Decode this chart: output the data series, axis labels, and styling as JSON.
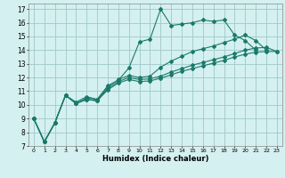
{
  "xlabel": "Humidex (Indice chaleur)",
  "background_color": "#d4f0f0",
  "grid_color": "#a0c8c8",
  "line_color": "#1a7a6a",
  "xlim": [
    -0.5,
    23.5
  ],
  "ylim": [
    7,
    17.4
  ],
  "xticks": [
    0,
    1,
    2,
    3,
    4,
    5,
    6,
    7,
    8,
    9,
    10,
    11,
    12,
    13,
    14,
    15,
    16,
    17,
    18,
    19,
    20,
    21,
    22,
    23
  ],
  "yticks": [
    7,
    8,
    9,
    10,
    11,
    12,
    13,
    14,
    15,
    16,
    17
  ],
  "lines": [
    {
      "x": [
        0,
        1,
        2,
        3,
        4,
        5,
        6,
        7,
        8,
        9,
        10,
        11,
        12,
        13,
        14,
        15,
        16,
        17,
        18,
        19,
        20,
        21
      ],
      "y": [
        9,
        7.3,
        8.7,
        10.7,
        10.2,
        10.6,
        10.4,
        11.4,
        11.8,
        12.7,
        14.6,
        14.8,
        17.0,
        15.8,
        15.9,
        16.0,
        16.2,
        16.1,
        16.2,
        15.1,
        14.7,
        14.0
      ],
      "marker": "D",
      "markersize": 2.0
    },
    {
      "x": [
        0,
        1,
        2,
        3,
        4,
        5,
        6,
        7,
        8,
        9,
        10,
        11,
        12,
        13,
        14,
        15,
        16,
        17,
        18,
        19,
        20,
        21,
        22
      ],
      "y": [
        9,
        7.3,
        8.7,
        10.7,
        10.1,
        10.5,
        10.4,
        11.3,
        11.85,
        12.15,
        12.0,
        12.1,
        12.75,
        13.2,
        13.55,
        13.9,
        14.1,
        14.3,
        14.55,
        14.8,
        15.1,
        14.7,
        14.0
      ],
      "marker": "D",
      "markersize": 2.0
    },
    {
      "x": [
        0,
        1,
        2,
        3,
        4,
        5,
        6,
        7,
        8,
        9,
        10,
        11,
        12,
        13,
        14,
        15,
        16,
        17,
        18,
        19,
        20,
        21,
        22,
        23
      ],
      "y": [
        9,
        7.3,
        8.7,
        10.7,
        10.1,
        10.4,
        10.3,
        11.2,
        11.7,
        12.0,
        11.85,
        11.9,
        12.1,
        12.4,
        12.65,
        12.9,
        13.1,
        13.3,
        13.5,
        13.75,
        14.0,
        14.15,
        14.2,
        13.9
      ],
      "marker": "D",
      "markersize": 2.0
    },
    {
      "x": [
        0,
        1,
        2,
        3,
        4,
        5,
        6,
        7,
        8,
        9,
        10,
        11,
        12,
        13,
        14,
        15,
        16,
        17,
        18,
        19,
        20,
        21,
        22,
        23
      ],
      "y": [
        9,
        7.3,
        8.7,
        10.7,
        10.1,
        10.4,
        10.3,
        11.1,
        11.6,
        11.85,
        11.7,
        11.75,
        11.95,
        12.2,
        12.45,
        12.65,
        12.85,
        13.05,
        13.25,
        13.5,
        13.7,
        13.85,
        13.9,
        13.9
      ],
      "marker": "D",
      "markersize": 2.0
    }
  ]
}
